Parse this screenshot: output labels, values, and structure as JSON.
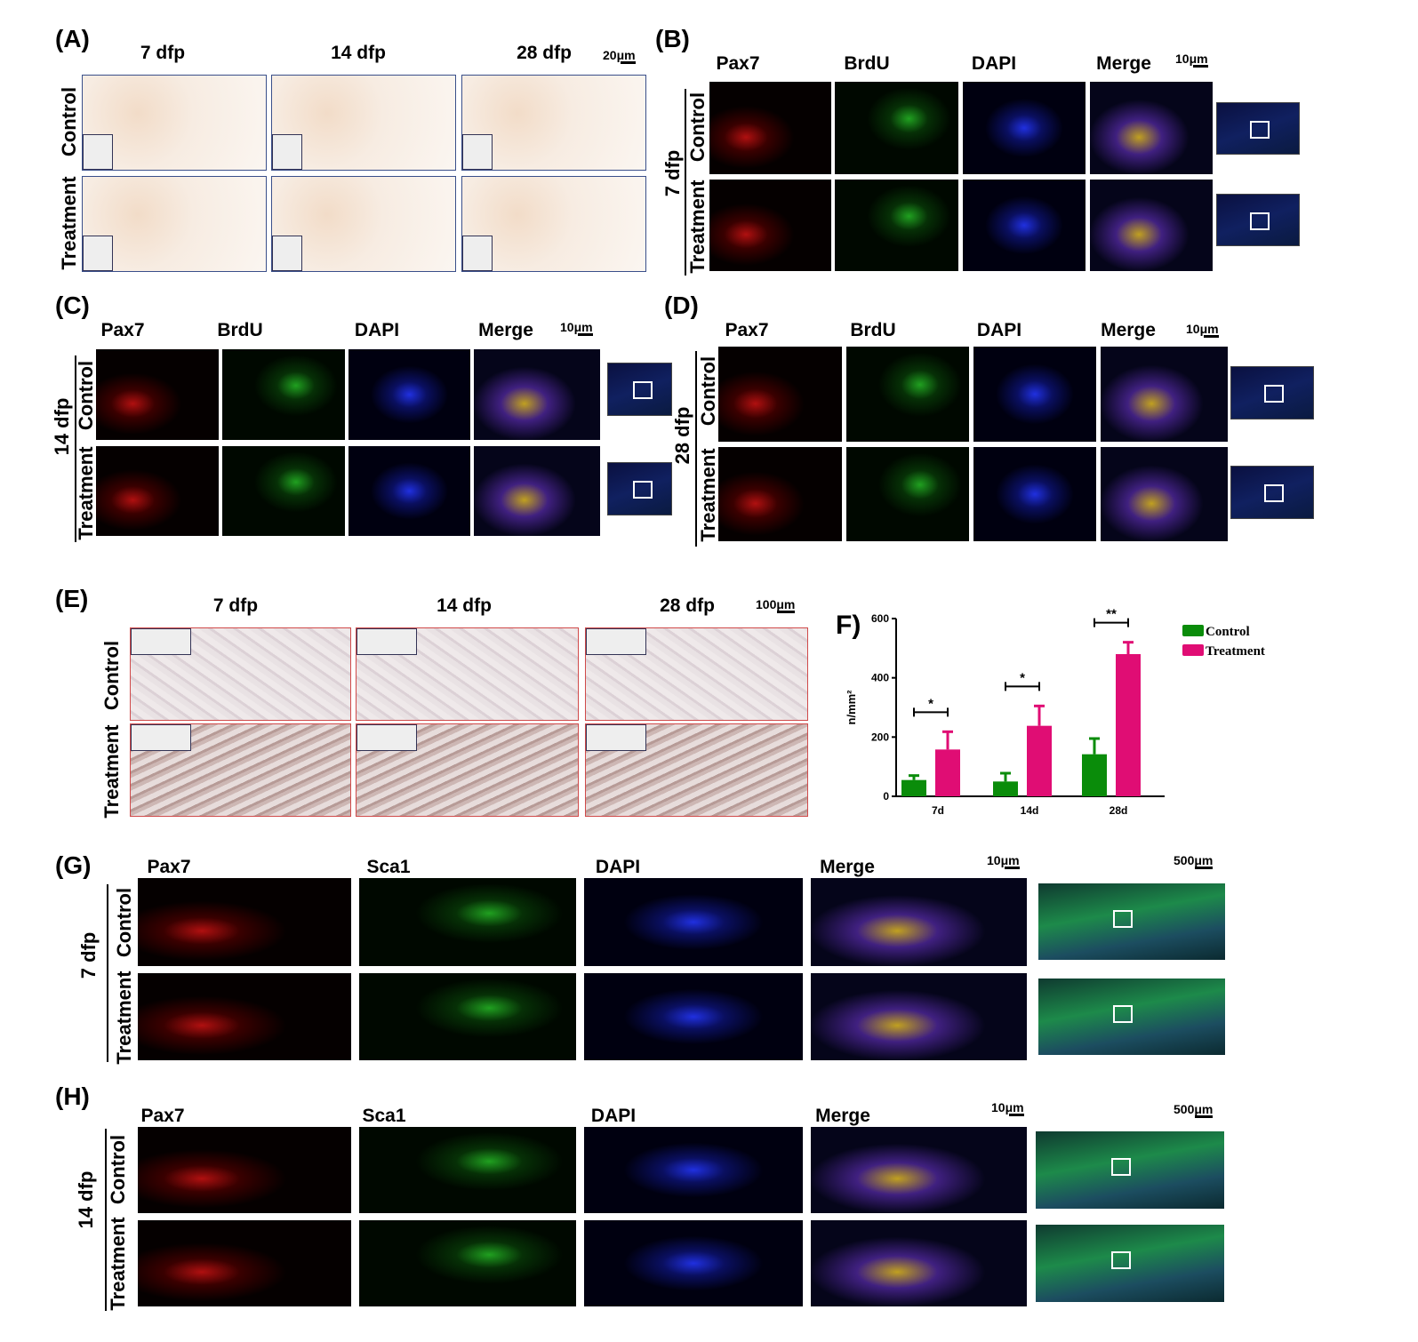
{
  "panels": {
    "A": {
      "label": "(A)",
      "columns": [
        "7 dfp",
        "14 dfp",
        "28 dfp"
      ],
      "rows": [
        "Control",
        "Treatment"
      ],
      "scale": "20μm"
    },
    "B": {
      "label": "(B)",
      "group": "7 dfp",
      "columns": [
        "Pax7",
        "BrdU",
        "DAPI",
        "Merge"
      ],
      "rows": [
        "Control",
        "Treatment"
      ],
      "scale": "10μm"
    },
    "C": {
      "label": "(C)",
      "group": "14 dfp",
      "columns": [
        "Pax7",
        "BrdU",
        "DAPI",
        "Merge"
      ],
      "rows": [
        "Control",
        "Treatment"
      ],
      "scale": "10μm"
    },
    "D": {
      "label": "(D)",
      "group": "28 dfp",
      "columns": [
        "Pax7",
        "BrdU",
        "DAPI",
        "Merge"
      ],
      "rows": [
        "Control",
        "Treatment"
      ],
      "scale": "10μm"
    },
    "E": {
      "label": "(E)",
      "columns": [
        "7 dfp",
        "14 dfp",
        "28 dfp"
      ],
      "rows": [
        "Control",
        "Treatment"
      ],
      "scale": "100μm"
    },
    "F": {
      "label": "(F)"
    },
    "G": {
      "label": "(G)",
      "group": "7 dfp",
      "columns": [
        "Pax7",
        "Sca1",
        "DAPI",
        "Merge"
      ],
      "rows": [
        "Control",
        "Treatment"
      ],
      "scale": "10μm",
      "overview_scale": "500μm"
    },
    "H": {
      "label": "(H)",
      "group": "14 dfp",
      "columns": [
        "Pax7",
        "Sca1",
        "DAPI",
        "Merge"
      ],
      "rows": [
        "Control",
        "Treatment"
      ],
      "scale": "10μm",
      "overview_scale": "500μm"
    }
  },
  "chart_data": {
    "type": "bar",
    "categories": [
      "7d",
      "14d",
      "28d"
    ],
    "ylabel": "n/mm²",
    "ylim": [
      0,
      600
    ],
    "yticks": [
      0,
      200,
      400,
      600
    ],
    "legend_placement": "top-right",
    "series": [
      {
        "name": "Control",
        "color": "#0a8c0a",
        "values": [
          55,
          50,
          142
        ],
        "error": [
          15,
          28,
          53
        ]
      },
      {
        "name": "Treatment",
        "color": "#e00d74",
        "values": [
          158,
          238,
          480
        ],
        "error": [
          60,
          67,
          40
        ]
      }
    ],
    "significance": [
      "*",
      "*",
      "**"
    ]
  }
}
